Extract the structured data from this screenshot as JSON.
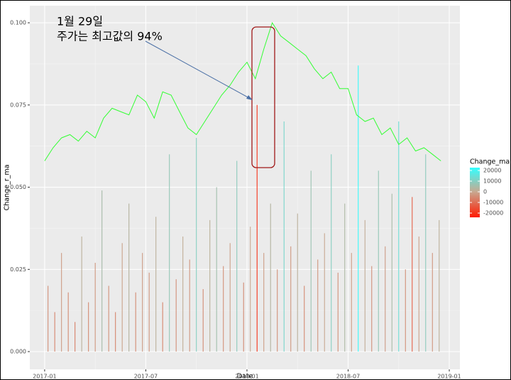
{
  "chart_data": {
    "type": "line",
    "xlabel": "Date",
    "ylabel": "Change_r_ma",
    "annotations": [
      "1월 29일",
      "주가는 최고값의 94%"
    ],
    "xlim": [
      -0.88,
      24.63
    ],
    "xticks": [
      {
        "value": 0,
        "label": "2017-01"
      },
      {
        "value": 6,
        "label": "2017-07"
      },
      {
        "value": 12,
        "label": "2018-01"
      },
      {
        "value": 18,
        "label": "2018-07"
      },
      {
        "value": 24,
        "label": "2019-01"
      }
    ],
    "ylim": [
      -0.0054,
      0.1052
    ],
    "yticks": [
      {
        "value": 0,
        "label": "0.000"
      },
      {
        "value": 0.025,
        "label": "0.025"
      },
      {
        "value": 0.05,
        "label": "0.050"
      },
      {
        "value": 0.075,
        "label": "0.075"
      },
      {
        "value": 0.1,
        "label": "0.100"
      }
    ],
    "grid": true,
    "line": {
      "color": "#33ff33",
      "x": [
        0,
        0.5,
        1,
        1.5,
        2,
        2.5,
        3,
        3.5,
        4,
        4.5,
        5,
        5.5,
        6,
        6.5,
        7,
        7.5,
        8,
        8.5,
        9,
        9.5,
        10,
        10.5,
        11,
        11.5,
        12,
        12.5,
        13,
        13.5,
        14,
        14.5,
        15,
        15.5,
        16,
        16.5,
        17,
        17.5,
        18,
        18.5,
        19,
        19.5,
        20,
        20.5,
        21,
        21.5,
        22,
        22.5,
        23,
        23.5
      ],
      "values": [
        0.058,
        0.062,
        0.065,
        0.066,
        0.064,
        0.067,
        0.065,
        0.071,
        0.074,
        0.073,
        0.072,
        0.078,
        0.076,
        0.071,
        0.079,
        0.078,
        0.073,
        0.068,
        0.066,
        0.07,
        0.074,
        0.078,
        0.081,
        0.085,
        0.088,
        0.083,
        0.092,
        0.1,
        0.096,
        0.094,
        0.092,
        0.09,
        0.086,
        0.083,
        0.085,
        0.08,
        0.08,
        0.072,
        0.07,
        0.071,
        0.066,
        0.068,
        0.063,
        0.065,
        0.061,
        0.062,
        0.06,
        0.058
      ]
    },
    "spikes": {
      "x": [
        0.2,
        0.6,
        1.0,
        1.4,
        1.8,
        2.2,
        2.6,
        3.0,
        3.4,
        3.8,
        4.2,
        4.6,
        5.0,
        5.4,
        5.8,
        6.2,
        6.6,
        7.0,
        7.4,
        7.8,
        8.2,
        8.6,
        9.0,
        9.4,
        9.8,
        10.2,
        10.6,
        11.0,
        11.4,
        11.8,
        12.2,
        12.6,
        13.0,
        13.4,
        13.8,
        14.2,
        14.6,
        15.0,
        15.4,
        15.8,
        16.2,
        16.6,
        17.0,
        17.4,
        17.8,
        18.2,
        18.6,
        19.0,
        19.4,
        19.8,
        20.2,
        20.6,
        21.0,
        21.4,
        21.8,
        22.2,
        22.6,
        23.0,
        23.4
      ],
      "values": [
        0.02,
        0.012,
        0.03,
        0.018,
        0.009,
        0.035,
        0.015,
        0.027,
        0.049,
        0.02,
        0.012,
        0.033,
        0.045,
        0.018,
        0.03,
        0.024,
        0.041,
        0.015,
        0.06,
        0.022,
        0.035,
        0.028,
        0.065,
        0.019,
        0.04,
        0.05,
        0.026,
        0.033,
        0.058,
        0.021,
        0.038,
        0.075,
        0.03,
        0.045,
        0.025,
        0.07,
        0.032,
        0.042,
        0.02,
        0.055,
        0.028,
        0.036,
        0.06,
        0.024,
        0.045,
        0.03,
        0.087,
        0.04,
        0.026,
        0.055,
        0.032,
        0.048,
        0.07,
        0.025,
        0.047,
        0.035,
        0.06,
        0.03,
        0.04
      ],
      "change": [
        -4000,
        -6000,
        -2000,
        -5000,
        -7000,
        2000,
        -5000,
        -3000,
        5000,
        -4000,
        -6000,
        -1000,
        3000,
        -5000,
        -2000,
        -3000,
        2000,
        -6000,
        8000,
        -4000,
        1000,
        -3000,
        10000,
        -5000,
        2000,
        6000,
        -4000,
        -1000,
        9000,
        -5000,
        0,
        -20000,
        -2000,
        3000,
        -4000,
        12000,
        -3000,
        2000,
        -5000,
        7000,
        -3000,
        0,
        10000,
        -4000,
        4000,
        -2000,
        22000,
        1000,
        -4000,
        8000,
        -2000,
        5000,
        14000,
        -4000,
        -12000,
        -1000,
        9000,
        -3000,
        2000
      ]
    },
    "legend": {
      "title": "Change_ma",
      "clim": [
        -24000,
        22700
      ],
      "ticks": [
        20000,
        10000,
        0,
        -10000,
        -20000
      ],
      "colors": {
        "low": "#ff1a00",
        "mid": "#c8a890",
        "high": "#33ffff"
      }
    }
  }
}
